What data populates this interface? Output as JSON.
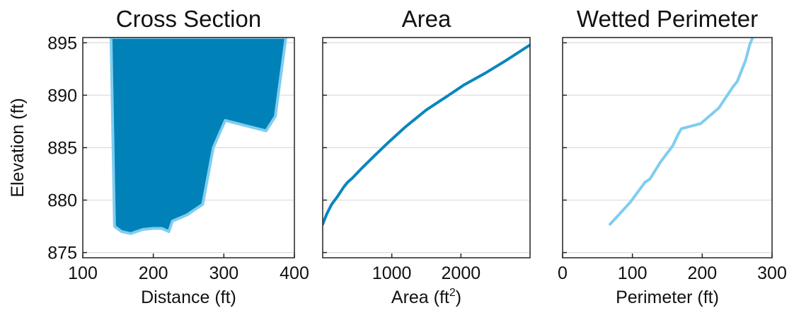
{
  "colors": {
    "fill": "#0081b8",
    "outline": "#80cdf0",
    "area_line": "#0a86be",
    "perimeter_line": "#80cdf0"
  },
  "shared_ylabel": "Elevation (ft)",
  "chart_data": [
    {
      "type": "area",
      "title": "Cross Section",
      "xlabel": "Distance (ft)",
      "ylabel": "Elevation (ft)",
      "xlim": [
        100,
        400
      ],
      "ylim": [
        874.5,
        895.5
      ],
      "xticks": [
        "100",
        "200",
        "300",
        "400"
      ],
      "yticks": [
        "875",
        "880",
        "885",
        "890",
        "895"
      ],
      "grid": "horizontal",
      "series": [
        {
          "x": [
            140,
            145,
            155,
            168,
            185,
            200,
            212,
            222,
            227,
            248,
            270,
            285,
            302,
            360,
            373,
            388
          ],
          "y": [
            895.5,
            877.5,
            877.0,
            876.8,
            877.2,
            877.3,
            877.3,
            877.0,
            878.0,
            878.6,
            879.6,
            885.0,
            887.6,
            886.6,
            888.0,
            895.5
          ]
        }
      ]
    },
    {
      "type": "line",
      "title": "Area",
      "xlabel": "Area (ft",
      "xlabel_sup": "2",
      "xlabel_close": ")",
      "ylim": [
        874.5,
        895.5
      ],
      "xlim": [
        0,
        3000
      ],
      "xticks": [
        "1000",
        "2000"
      ],
      "grid": "horizontal",
      "series": [
        {
          "x": [
            0,
            60,
            130,
            210,
            300,
            360,
            430,
            560,
            760,
            950,
            1200,
            1500,
            1800,
            2050,
            2350,
            2650,
            3000
          ],
          "y": [
            877.7,
            878.7,
            879.6,
            880.3,
            881.2,
            881.7,
            882.1,
            883.0,
            884.3,
            885.5,
            887.0,
            888.6,
            889.9,
            891.0,
            892.1,
            893.3,
            894.8
          ]
        }
      ]
    },
    {
      "type": "line",
      "title": "Wetted Perimeter",
      "xlabel": "Perimeter (ft)",
      "ylim": [
        874.5,
        895.5
      ],
      "xlim": [
        0,
        300
      ],
      "xticks": [
        "0",
        "100",
        "200",
        "300"
      ],
      "grid": "horizontal",
      "series": [
        {
          "x": [
            68,
            82,
            97,
            108,
            118,
            125,
            140,
            158,
            165,
            170,
            198,
            224,
            244,
            250,
            262,
            268,
            272
          ],
          "y": [
            877.7,
            878.7,
            879.8,
            880.8,
            881.7,
            882.0,
            883.6,
            885.2,
            886.2,
            886.8,
            887.3,
            888.8,
            890.8,
            891.3,
            893.3,
            894.8,
            895.5
          ]
        }
      ]
    }
  ]
}
